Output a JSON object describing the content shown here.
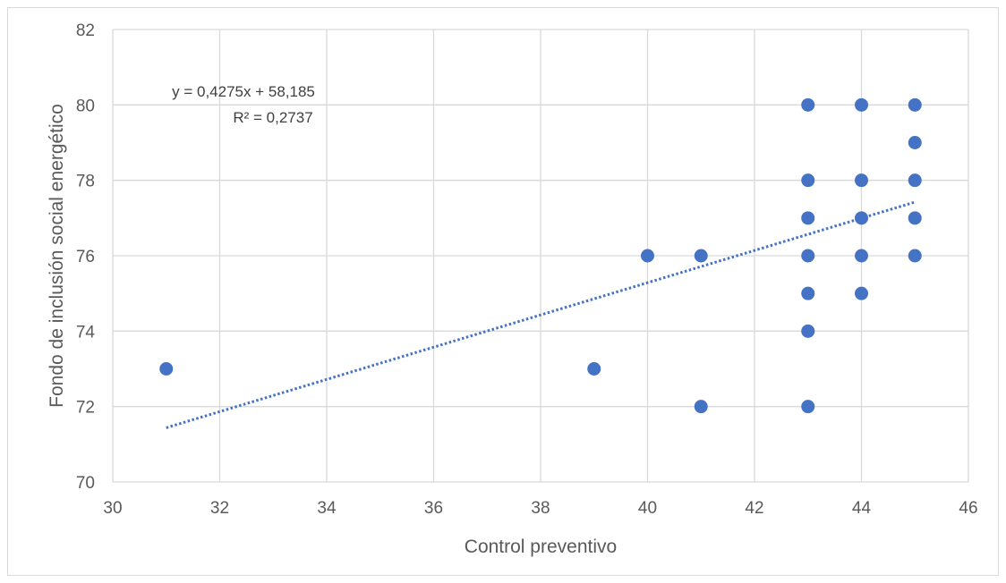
{
  "chart_data": {
    "type": "scatter",
    "xlabel": "Control preventivo",
    "ylabel": "Fondo de inclusión social energético",
    "xlim": [
      30,
      46
    ],
    "ylim": [
      70,
      82
    ],
    "x_ticks": [
      "30",
      "32",
      "34",
      "36",
      "38",
      "40",
      "42",
      "44",
      "46"
    ],
    "y_ticks": [
      "70",
      "72",
      "74",
      "76",
      "78",
      "80",
      "82"
    ],
    "grid": true,
    "legend": "none",
    "marker_color": "#4472c4",
    "trendline": {
      "kind": "linear",
      "style": "dotted",
      "slope": 0.4275,
      "intercept": 58.185,
      "x_range": [
        31,
        45
      ],
      "equation_label": "y = 0,4275x + 58,185",
      "r2_label": "R² = 0,2737"
    },
    "points": [
      {
        "x": 31,
        "y": 73
      },
      {
        "x": 39,
        "y": 73
      },
      {
        "x": 40,
        "y": 76
      },
      {
        "x": 41,
        "y": 76
      },
      {
        "x": 41,
        "y": 72
      },
      {
        "x": 43,
        "y": 80
      },
      {
        "x": 43,
        "y": 78
      },
      {
        "x": 43,
        "y": 77
      },
      {
        "x": 43,
        "y": 76
      },
      {
        "x": 43,
        "y": 75
      },
      {
        "x": 43,
        "y": 74
      },
      {
        "x": 43,
        "y": 72
      },
      {
        "x": 44,
        "y": 80
      },
      {
        "x": 44,
        "y": 78
      },
      {
        "x": 44,
        "y": 77
      },
      {
        "x": 44,
        "y": 76
      },
      {
        "x": 44,
        "y": 75
      },
      {
        "x": 45,
        "y": 80
      },
      {
        "x": 45,
        "y": 79
      },
      {
        "x": 45,
        "y": 78
      },
      {
        "x": 45,
        "y": 77
      },
      {
        "x": 45,
        "y": 76
      }
    ]
  }
}
